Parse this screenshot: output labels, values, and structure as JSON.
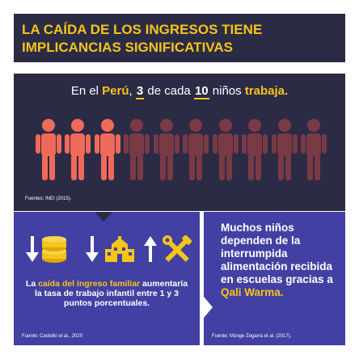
{
  "header": {
    "title": "LA CAÍDA DE LOS INGRESOS TIENE IMPLICANCIAS SIGNIFICATIVAS"
  },
  "stat": {
    "s1": "En el ",
    "country": "Perú",
    "s2": ", ",
    "n3": "3",
    "s3": " de cada ",
    "n10": "10",
    "s4": " niños ",
    "verb": "trabaja.",
    "working": 3,
    "total": 10,
    "source": "Fuentes: INEI (2015)."
  },
  "left": {
    "t1": "La ",
    "t_hl": "caída del ingreso familiar",
    "t2": " aumentaría la tasa de trabajo infantil entre 1 y 3 puntos porcentuales.",
    "source": "Fuente: Castelló et al., 2020"
  },
  "right": {
    "t1": "Muchos niños dependen de la interrumpida alimentación recibida en escuelas gracias a ",
    "t_hl": "Qali Warma.",
    "source": "Fuente: Monge Zegarra et al. (2017)."
  },
  "colors": {
    "dark": "#2b2b45",
    "purple": "#4340a3",
    "yellow": "#f5c518",
    "active": "#f06a5a",
    "inactive": "#7a3a45"
  },
  "icons": [
    "arrow-down-icon",
    "coins-icon",
    "arrow-down-icon",
    "school-icon",
    "arrow-up-icon",
    "tools-icon"
  ]
}
